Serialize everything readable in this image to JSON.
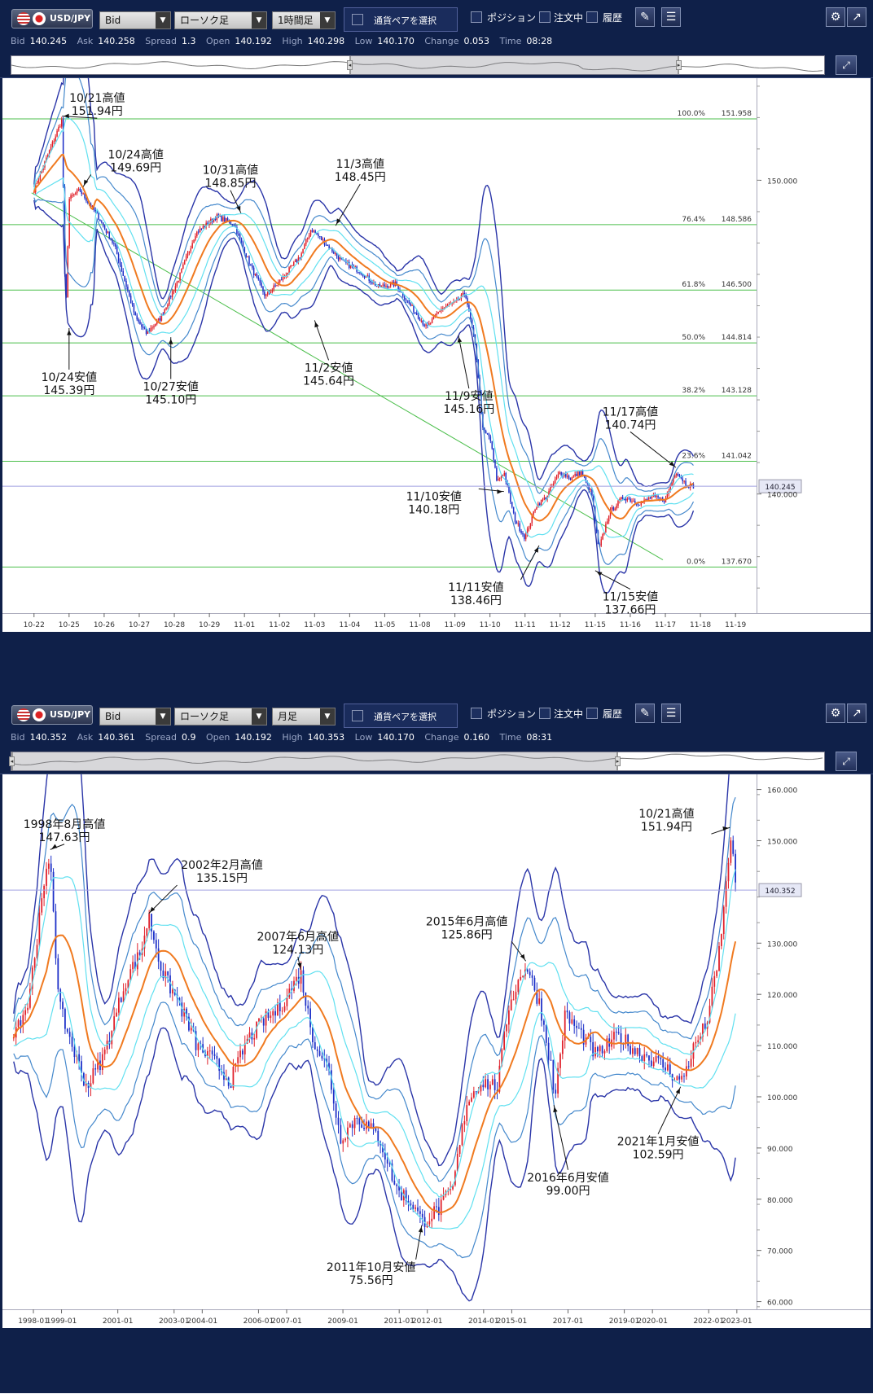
{
  "panels": [
    {
      "pair": "USD/JPY",
      "price_type": "Bid",
      "chart_type": "ローソク足",
      "timeframe": "1時間足",
      "pair_select": "通貨ペアを選択",
      "position": "ポジション",
      "orders": "注文中",
      "history": "履歴",
      "quote": {
        "bid_label": "Bid",
        "bid": "140.245",
        "ask_label": "Ask",
        "ask": "140.258",
        "spread_label": "Spread",
        "spread": "1.3",
        "open_label": "Open",
        "open": "140.192",
        "high_label": "High",
        "high": "140.298",
        "low_label": "Low",
        "low": "140.170",
        "change_label": "Change",
        "change": "0.053",
        "time_label": "Time",
        "time": "08:28"
      }
    },
    {
      "pair": "USD/JPY",
      "price_type": "Bid",
      "chart_type": "ローソク足",
      "timeframe": "月足",
      "pair_select": "通貨ペアを選択",
      "position": "ポジション",
      "orders": "注文中",
      "history": "履歴",
      "quote": {
        "bid_label": "Bid",
        "bid": "140.352",
        "ask_label": "Ask",
        "ask": "140.361",
        "spread_label": "Spread",
        "spread": "0.9",
        "open_label": "Open",
        "open": "140.192",
        "high_label": "High",
        "high": "140.353",
        "low_label": "Low",
        "low": "140.170",
        "change_label": "Change",
        "change": "0.160",
        "time_label": "Time",
        "time": "08:31"
      }
    }
  ],
  "colors": {
    "bg": "#0f2049",
    "grid": "#4cbf4c",
    "up": "#e0202a",
    "down": "#1c2fc8",
    "ma": "#f07a20",
    "band1": "#60e0f0",
    "band2": "#4488cc",
    "band3": "#2a35a8",
    "price_line": "#a0a0e0"
  },
  "chart_data": [
    {
      "type": "candlestick",
      "ylim": [
        136.2,
        153.1
      ],
      "x_ticks": [
        "10-22",
        "10-25",
        "10-26",
        "10-27",
        "10-28",
        "10-29",
        "11-01",
        "11-02",
        "11-03",
        "11-04",
        "11-05",
        "11-08",
        "11-09",
        "11-10",
        "11-11",
        "11-12",
        "11-15",
        "11-16",
        "11-17",
        "11-18",
        "11-19"
      ],
      "y_ticks": [
        "150.000",
        "140.000"
      ],
      "current_price": {
        "value": 140.245,
        "label": "140.245"
      },
      "fibonacci": [
        {
          "label": "100.0%",
          "value": "151.958",
          "v": 151.958
        },
        {
          "label": "76.4%",
          "value": "148.586",
          "v": 148.586
        },
        {
          "label": "61.8%",
          "value": "146.500",
          "v": 146.5
        },
        {
          "label": "50.0%",
          "value": "144.814",
          "v": 144.814
        },
        {
          "label": "38.2%",
          "value": "143.128",
          "v": 143.128
        },
        {
          "label": "23.6%",
          "value": "141.042",
          "v": 141.042
        },
        {
          "label": "0.0%",
          "value": "137.670",
          "v": 137.67
        }
      ],
      "trendline": [
        {
          "x": 0,
          "y": 149.6
        },
        {
          "x": 18,
          "y": 137.9
        }
      ],
      "path": [
        [
          0,
          149.7
        ],
        [
          0.8,
          151.94
        ],
        [
          0.9,
          145.4
        ],
        [
          1,
          149.4
        ],
        [
          1.3,
          149.69
        ],
        [
          1.8,
          148.9
        ],
        [
          2.3,
          147.9
        ],
        [
          2.9,
          145.6
        ],
        [
          3.2,
          145.12
        ],
        [
          3.6,
          145.6
        ],
        [
          4.1,
          146.8
        ],
        [
          4.6,
          148.3
        ],
        [
          5.2,
          148.85
        ],
        [
          5.7,
          148.6
        ],
        [
          6.2,
          147.2
        ],
        [
          6.6,
          146.3
        ],
        [
          7.1,
          146.9
        ],
        [
          7.6,
          147.6
        ],
        [
          7.9,
          148.45
        ],
        [
          8.3,
          148.0
        ],
        [
          8.8,
          147.4
        ],
        [
          9.3,
          147.1
        ],
        [
          9.8,
          146.6
        ],
        [
          10.3,
          146.7
        ],
        [
          10.8,
          145.9
        ],
        [
          11.2,
          145.3
        ],
        [
          11.6,
          145.9
        ],
        [
          12.0,
          146.1
        ],
        [
          12.3,
          146.4
        ],
        [
          12.6,
          144.6
        ],
        [
          12.8,
          142.0
        ],
        [
          13.0,
          141.8
        ],
        [
          13.2,
          140.4
        ],
        [
          13.4,
          140.7
        ],
        [
          13.7,
          139.2
        ],
        [
          14.0,
          138.6
        ],
        [
          14.3,
          139.6
        ],
        [
          14.6,
          139.9
        ],
        [
          15.0,
          140.7
        ],
        [
          15.3,
          140.5
        ],
        [
          15.6,
          140.7
        ],
        [
          15.9,
          140.0
        ],
        [
          16.1,
          138.2
        ],
        [
          16.4,
          139.4
        ],
        [
          16.8,
          139.9
        ],
        [
          17.3,
          139.7
        ],
        [
          17.6,
          139.9
        ],
        [
          18.0,
          139.8
        ],
        [
          18.3,
          140.74
        ],
        [
          18.6,
          140.3
        ],
        [
          18.8,
          140.25
        ]
      ],
      "annotations": [
        {
          "date": "10/21高値",
          "price": "151.94円",
          "tx": 0.8,
          "ty": 151.94,
          "lx": 1.8,
          "ly": 152.5
        },
        {
          "date": "10/24高値",
          "price": "149.69円",
          "tx": 1.4,
          "ty": 149.69,
          "lx": 2.9,
          "ly": 150.7
        },
        {
          "date": "10/31高値",
          "price": "148.85円",
          "tx": 5.9,
          "ty": 148.85,
          "lx": 5.6,
          "ly": 150.2
        },
        {
          "date": "11/3高値",
          "price": "148.45円",
          "tx": 8.6,
          "ty": 148.45,
          "lx": 9.3,
          "ly": 150.4
        },
        {
          "date": "10/24安値",
          "price": "145.39円",
          "tx": 1.0,
          "ty": 145.39,
          "lx": 1.0,
          "ly": 143.6
        },
        {
          "date": "10/27安値",
          "price": "145.10円",
          "tx": 3.9,
          "ty": 145.1,
          "lx": 3.9,
          "ly": 143.3
        },
        {
          "date": "11/2安値",
          "price": "145.64円",
          "tx": 8.0,
          "ty": 145.64,
          "lx": 8.4,
          "ly": 143.9
        },
        {
          "date": "11/9安値",
          "price": "145.16円",
          "tx": 12.1,
          "ty": 145.16,
          "lx": 12.4,
          "ly": 143.0
        },
        {
          "date": "11/10安値",
          "price": "140.18円",
          "tx": 13.4,
          "ty": 140.18,
          "lx": 11.4,
          "ly": 139.8
        },
        {
          "date": "11/11安値",
          "price": "138.46円",
          "tx": 14.4,
          "ty": 138.46,
          "lx": 12.6,
          "ly": 136.9
        },
        {
          "date": "11/15安値",
          "price": "137.66円",
          "tx": 16.0,
          "ty": 137.66,
          "lx": 17.0,
          "ly": 136.6
        },
        {
          "date": "11/17高値",
          "price": "140.74円",
          "tx": 18.3,
          "ty": 140.74,
          "lx": 17.0,
          "ly": 142.5
        }
      ]
    },
    {
      "type": "candlestick",
      "ylim": [
        58.5,
        162.0
      ],
      "x_ticks": [
        "1998-01",
        "1999-01",
        "2001-01",
        "2003-01",
        "2004-01",
        "2006-01",
        "2007-01",
        "2009-01",
        "2011-01",
        "2012-01",
        "2014-01",
        "2015-01",
        "2017-01",
        "2019-01",
        "2020-01",
        "2022-01",
        "2023-01"
      ],
      "y_ticks": [
        "160.000",
        "150.000",
        "130.000",
        "120.000",
        "110.000",
        "100.000",
        "90.000",
        "80.000",
        "70.000",
        "60.000"
      ],
      "current_price": {
        "value": 140.352,
        "label": "140.352"
      },
      "path": [
        [
          1997.3,
          113
        ],
        [
          1997.8,
          118
        ],
        [
          1998.3,
          138
        ],
        [
          1998.6,
          147.63
        ],
        [
          1998.9,
          118
        ],
        [
          1999.5,
          108
        ],
        [
          1999.9,
          102
        ],
        [
          2000.5,
          108
        ],
        [
          2001.3,
          123
        ],
        [
          2001.8,
          128
        ],
        [
          2002.1,
          135.15
        ],
        [
          2002.6,
          124
        ],
        [
          2003.2,
          118
        ],
        [
          2003.8,
          110
        ],
        [
          2004.4,
          107
        ],
        [
          2005.0,
          103
        ],
        [
          2005.6,
          111
        ],
        [
          2006.2,
          115
        ],
        [
          2006.7,
          117
        ],
        [
          2007.5,
          124.13
        ],
        [
          2007.9,
          112
        ],
        [
          2008.5,
          105
        ],
        [
          2008.9,
          92
        ],
        [
          2009.5,
          96
        ],
        [
          2010.3,
          92
        ],
        [
          2010.9,
          82
        ],
        [
          2011.5,
          79
        ],
        [
          2011.8,
          75.56
        ],
        [
          2012.4,
          78
        ],
        [
          2012.9,
          82
        ],
        [
          2013.4,
          99
        ],
        [
          2013.9,
          103
        ],
        [
          2014.5,
          102
        ],
        [
          2014.9,
          118
        ],
        [
          2015.5,
          125.86
        ],
        [
          2016.0,
          118
        ],
        [
          2016.4,
          106
        ],
        [
          2016.5,
          99.0
        ],
        [
          2016.9,
          116
        ],
        [
          2017.5,
          112
        ],
        [
          2018.0,
          108
        ],
        [
          2018.8,
          112
        ],
        [
          2019.4,
          109
        ],
        [
          2019.8,
          108
        ],
        [
          2020.4,
          106
        ],
        [
          2020.9,
          103.5
        ],
        [
          2021.0,
          102.59
        ],
        [
          2021.5,
          110
        ],
        [
          2021.9,
          114
        ],
        [
          2022.3,
          125
        ],
        [
          2022.6,
          140
        ],
        [
          2022.8,
          151.94
        ],
        [
          2022.95,
          140.35
        ]
      ],
      "annotations": [
        {
          "date": "1998年8月高値",
          "price": "147.63円",
          "tx": 1998.6,
          "ty": 147.63,
          "lx": 1999.1,
          "ly": 152.5
        },
        {
          "date": "2002年2月高値",
          "price": "135.15円",
          "tx": 2002.1,
          "ty": 135.15,
          "lx": 2004.7,
          "ly": 144.5
        },
        {
          "date": "2007年6月高値",
          "price": "124.13円",
          "tx": 2007.5,
          "ty": 124.13,
          "lx": 2007.4,
          "ly": 130.5
        },
        {
          "date": "2015年6月高値",
          "price": "125.86円",
          "tx": 2015.5,
          "ty": 125.86,
          "lx": 2013.4,
          "ly": 133.5
        },
        {
          "date": "10/21高値",
          "price": "151.94円",
          "tx": 2022.75,
          "ty": 151.94,
          "lx": 2020.5,
          "ly": 154.5
        },
        {
          "date": "2011年10月安値",
          "price": "75.56円",
          "tx": 2011.8,
          "ty": 75.56,
          "lx": 2010.0,
          "ly": 66.0
        },
        {
          "date": "2016年6月安値",
          "price": "99.00円",
          "tx": 2016.5,
          "ty": 99.0,
          "lx": 2017.0,
          "ly": 83.5
        },
        {
          "date": "2021年1月安値",
          "price": "102.59円",
          "tx": 2021.0,
          "ty": 102.59,
          "lx": 2020.2,
          "ly": 90.5
        }
      ]
    }
  ]
}
